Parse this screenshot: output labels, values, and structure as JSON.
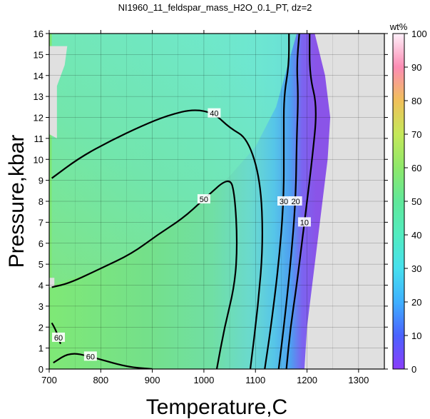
{
  "chart_data": {
    "type": "heatmap",
    "title": "NI1960_11_feldspar_mass_H2O_0.1_PT, dz=2",
    "xlabel": "Temperature,C",
    "ylabel": "Pressure,kbar",
    "xlim": [
      700,
      1350
    ],
    "ylim": [
      0,
      16
    ],
    "x_ticks": [
      "700",
      "800",
      "900",
      "1000",
      "1100",
      "1200",
      "1300"
    ],
    "y_ticks": [
      "0",
      "1",
      "2",
      "3",
      "4",
      "5",
      "6",
      "7",
      "8",
      "9",
      "10",
      "11",
      "12",
      "13",
      "14",
      "15",
      "16"
    ],
    "grid": true,
    "colorbar": {
      "label": "wt%",
      "range": [
        0,
        100
      ],
      "ticks": [
        "0",
        "10",
        "20",
        "30",
        "40",
        "50",
        "60",
        "70",
        "80",
        "90",
        "100"
      ]
    },
    "no_data_color": "#e0e0e0",
    "contour_labels": [
      "10",
      "20",
      "30",
      "40",
      "50",
      "60"
    ],
    "contours": [
      {
        "level": 60,
        "points": [
          [
            708,
            0.3
          ],
          [
            740,
            0.8
          ],
          [
            780,
            0.6
          ],
          [
            850,
            0.1
          ],
          [
            900,
            0.0
          ]
        ]
      },
      {
        "level": 60,
        "points": [
          [
            705,
            2.2
          ],
          [
            712,
            1.9
          ],
          [
            718,
            1.5
          ],
          [
            722,
            1.2
          ]
        ]
      },
      {
        "level": 50,
        "points": [
          [
            705,
            3.9
          ],
          [
            740,
            4.1
          ],
          [
            800,
            4.8
          ],
          [
            860,
            5.5
          ],
          [
            910,
            6.4
          ],
          [
            960,
            7.2
          ],
          [
            1000,
            8.1
          ],
          [
            1050,
            9.2
          ],
          [
            1060,
            8.3
          ],
          [
            1065,
            6.0
          ],
          [
            1060,
            4.0
          ],
          [
            1040,
            2.0
          ],
          [
            1025,
            0.0
          ]
        ]
      },
      {
        "level": 40,
        "points": [
          [
            705,
            9.1
          ],
          [
            760,
            10.1
          ],
          [
            820,
            10.9
          ],
          [
            880,
            11.6
          ],
          [
            930,
            12.1
          ],
          [
            980,
            12.4
          ],
          [
            1020,
            12.2
          ],
          [
            1050,
            11.5
          ],
          [
            1085,
            11.0
          ],
          [
            1110,
            9.0
          ],
          [
            1115,
            6.0
          ],
          [
            1105,
            3.0
          ],
          [
            1090,
            0.0
          ]
        ]
      },
      {
        "level": 30,
        "points": [
          [
            1165,
            16
          ],
          [
            1165,
            14.5
          ],
          [
            1155,
            13.0
          ],
          [
            1155,
            11.0
          ],
          [
            1155,
            8.0
          ],
          [
            1145,
            5.0
          ],
          [
            1130,
            2.0
          ],
          [
            1118,
            0.0
          ]
        ]
      },
      {
        "level": 20,
        "points": [
          [
            1185,
            16
          ],
          [
            1180,
            14.5
          ],
          [
            1183,
            13.0
          ],
          [
            1180,
            11.0
          ],
          [
            1178,
            8.0
          ],
          [
            1168,
            5.0
          ],
          [
            1155,
            2.0
          ],
          [
            1145,
            0.0
          ]
        ]
      },
      {
        "level": 10,
        "points": [
          [
            1205,
            16
          ],
          [
            1205,
            14.0
          ],
          [
            1220,
            12.5
          ],
          [
            1210,
            10.0
          ],
          [
            1195,
            7.0
          ],
          [
            1180,
            4.0
          ],
          [
            1168,
            2.0
          ],
          [
            1160,
            0.0
          ]
        ]
      }
    ]
  }
}
